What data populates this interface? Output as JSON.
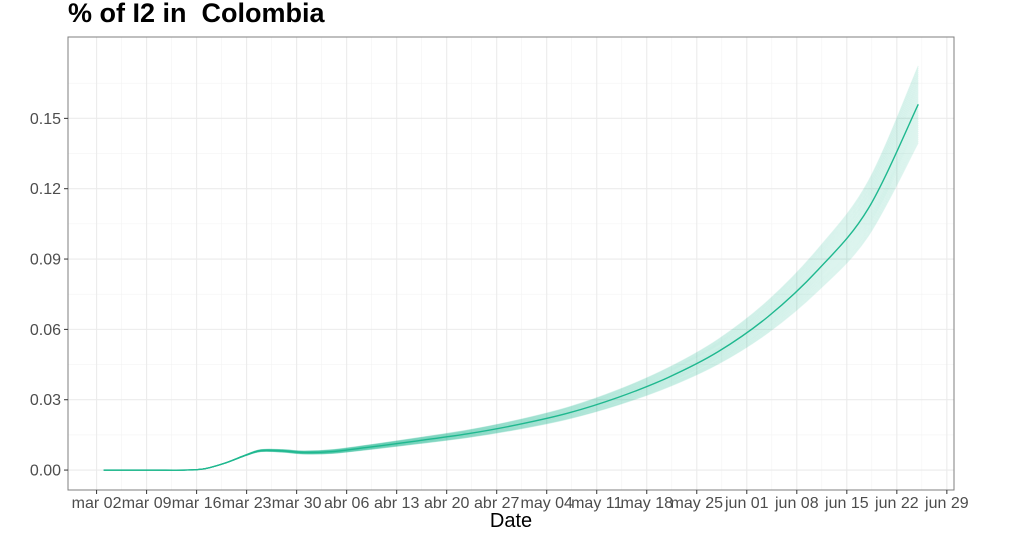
{
  "chart_data": {
    "type": "line",
    "title": "% of I2 in  Colombia",
    "xlabel": "Date",
    "ylabel": "",
    "x_ticks": [
      "mar 02",
      "mar 09",
      "mar 16",
      "mar 23",
      "mar 30",
      "abr 06",
      "abr 13",
      "abr 20",
      "abr 27",
      "may 04",
      "may 11",
      "may 18",
      "may 25",
      "jun 01",
      "jun 08",
      "jun 15",
      "jun 22",
      "jun 29"
    ],
    "y_ticks": [
      "0.00",
      "0.03",
      "0.06",
      "0.09",
      "0.12",
      "0.15"
    ],
    "ylim": [
      -0.0085,
      0.1847
    ],
    "xlim": [
      "2020-02-27",
      "2020-06-30"
    ],
    "grid": true,
    "legend": "none",
    "line_color": "#1fb88f",
    "series": [
      {
        "x": [
          "2020-03-03",
          "2020-03-10",
          "2020-03-14",
          "2020-03-17",
          "2020-03-20",
          "2020-03-23",
          "2020-03-25",
          "2020-03-28",
          "2020-03-31",
          "2020-04-04",
          "2020-04-09",
          "2020-04-16",
          "2020-04-23",
          "2020-04-30",
          "2020-05-07",
          "2020-05-14",
          "2020-05-21",
          "2020-05-28",
          "2020-06-04",
          "2020-06-11",
          "2020-06-18",
          "2020-06-25"
        ],
        "values": [
          0.0,
          0.0,
          0.0,
          0.0005,
          0.003,
          0.0065,
          0.0083,
          0.0082,
          0.0075,
          0.0079,
          0.0097,
          0.0125,
          0.0155,
          0.0194,
          0.0243,
          0.031,
          0.0395,
          0.0505,
          0.0655,
          0.0855,
          0.1115,
          0.156
        ]
      }
    ]
  }
}
